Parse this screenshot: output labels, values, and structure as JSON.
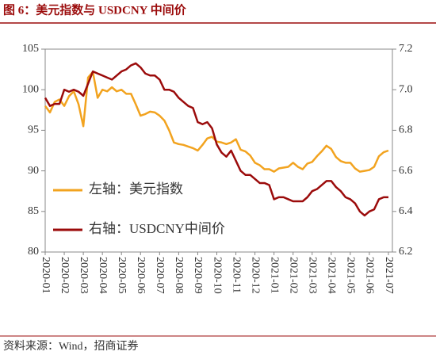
{
  "chart_data": {
    "type": "line",
    "title": "图 6：美元指数与 USDCNY 中间价",
    "source": "资料来源：Wind，招商证券",
    "categories": [
      "2020-01",
      null,
      null,
      null,
      "2020-02",
      null,
      null,
      null,
      "2020-03",
      null,
      null,
      null,
      "2020-04",
      null,
      null,
      null,
      "2020-05",
      null,
      null,
      null,
      "2020-06",
      null,
      null,
      null,
      "2020-07",
      null,
      null,
      null,
      "2020-08",
      null,
      null,
      null,
      "2020-09",
      null,
      null,
      null,
      "2020-10",
      null,
      null,
      null,
      "2020-11",
      null,
      null,
      null,
      "2020-12",
      null,
      null,
      null,
      "2021-01",
      null,
      null,
      null,
      "2021-02",
      null,
      null,
      null,
      "2021-03",
      null,
      null,
      null,
      "2021-04",
      null,
      null,
      null,
      "2021-05",
      null,
      null,
      null,
      "2021-06",
      null,
      null,
      null,
      "2021-07"
    ],
    "series": [
      {
        "name": "左轴：美元指数",
        "color": "#f2a31f",
        "axis": "y",
        "values": [
          98.0,
          97.2,
          98.5,
          98.8,
          98.0,
          99.2,
          99.8,
          98.2,
          95.5,
          101.5,
          102.2,
          99.0,
          100.0,
          99.8,
          100.3,
          99.8,
          100.0,
          99.5,
          99.5,
          98.2,
          96.8,
          97.0,
          97.3,
          97.2,
          96.8,
          96.2,
          95.0,
          93.5,
          93.3,
          93.2,
          93.0,
          92.8,
          92.5,
          93.2,
          94.0,
          94.2,
          93.6,
          93.5,
          93.3,
          93.5,
          93.9,
          92.6,
          92.4,
          91.9,
          91.0,
          90.7,
          90.2,
          90.2,
          89.9,
          90.3,
          90.4,
          90.5,
          91.0,
          90.5,
          90.2,
          90.9,
          91.1,
          91.8,
          92.4,
          93.1,
          92.7,
          91.7,
          91.2,
          91.0,
          91.0,
          90.3,
          89.9,
          90.0,
          90.1,
          90.5,
          91.8,
          92.3,
          92.5
        ]
      },
      {
        "name": "右轴：USDCNY中间价",
        "color": "#9b0b0b",
        "axis": "y2",
        "values": [
          6.96,
          6.92,
          6.93,
          6.93,
          7.0,
          6.99,
          7.0,
          6.99,
          6.97,
          7.03,
          7.09,
          7.08,
          7.07,
          7.06,
          7.05,
          7.07,
          7.09,
          7.1,
          7.12,
          7.13,
          7.11,
          7.08,
          7.07,
          7.07,
          7.05,
          7.0,
          7.0,
          6.99,
          6.96,
          6.94,
          6.92,
          6.91,
          6.84,
          6.83,
          6.84,
          6.81,
          6.73,
          6.69,
          6.67,
          6.7,
          6.65,
          6.6,
          6.58,
          6.58,
          6.56,
          6.54,
          6.54,
          6.53,
          6.46,
          6.47,
          6.47,
          6.46,
          6.45,
          6.45,
          6.45,
          6.47,
          6.5,
          6.51,
          6.53,
          6.55,
          6.55,
          6.52,
          6.5,
          6.47,
          6.46,
          6.44,
          6.4,
          6.38,
          6.4,
          6.41,
          6.46,
          6.47,
          6.47
        ]
      }
    ],
    "ylim": [
      80,
      105
    ],
    "yticks": [
      80,
      85,
      90,
      95,
      100,
      105
    ],
    "y2lim": [
      6.2,
      7.2
    ],
    "y2ticks": [
      6.2,
      6.4,
      6.6,
      6.8,
      {
        "value": 7,
        "label": "7.0"
      },
      7.2
    ],
    "legend": "left"
  }
}
